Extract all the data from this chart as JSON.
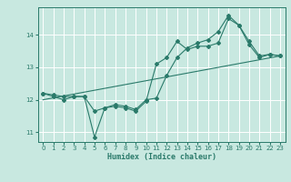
{
  "title": "",
  "xlabel": "Humidex (Indice chaleur)",
  "ylabel": "",
  "bg_color": "#c8e8e0",
  "line_color": "#2a7a6a",
  "grid_color": "#ffffff",
  "xlim": [
    -0.5,
    23.5
  ],
  "ylim": [
    10.7,
    14.85
  ],
  "xticks": [
    0,
    1,
    2,
    3,
    4,
    5,
    6,
    7,
    8,
    9,
    10,
    11,
    12,
    13,
    14,
    15,
    16,
    17,
    18,
    19,
    20,
    21,
    22,
    23
  ],
  "yticks": [
    11,
    12,
    13,
    14
  ],
  "line1_x": [
    0,
    1,
    2,
    3,
    4,
    5,
    6,
    7,
    8,
    9,
    10,
    11,
    12,
    13,
    14,
    15,
    16,
    17,
    18,
    19,
    20,
    21,
    22,
    23
  ],
  "line1_y": [
    12.2,
    12.1,
    12.0,
    12.1,
    12.1,
    10.85,
    11.75,
    11.8,
    11.75,
    11.65,
    11.95,
    13.1,
    13.3,
    13.8,
    13.55,
    13.65,
    13.65,
    13.75,
    14.5,
    14.3,
    13.7,
    13.3,
    13.4,
    13.35
  ],
  "line2_x": [
    0,
    1,
    2,
    3,
    4,
    5,
    6,
    7,
    8,
    9,
    10,
    11,
    12,
    13,
    14,
    15,
    16,
    17,
    18,
    19,
    20,
    21,
    22,
    23
  ],
  "line2_y": [
    12.2,
    12.15,
    12.1,
    12.1,
    12.1,
    11.65,
    11.75,
    11.85,
    11.8,
    11.7,
    12.0,
    12.05,
    12.75,
    13.3,
    13.6,
    13.75,
    13.85,
    14.1,
    14.6,
    14.3,
    13.8,
    13.35,
    13.4,
    13.35
  ],
  "line3_x": [
    0,
    23
  ],
  "line3_y": [
    12.0,
    13.35
  ],
  "marker": "D",
  "markersize": 2.0,
  "linewidth": 0.8
}
